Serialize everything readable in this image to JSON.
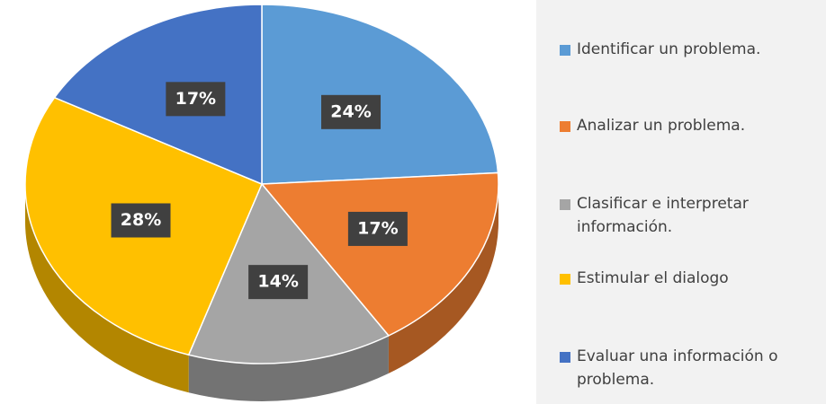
{
  "chart_data": {
    "type": "pie",
    "categories": [
      "Identificar un problema.",
      "Analizar un problema.",
      "Clasificar e interpretar información.",
      "Estimular el dialogo",
      "Evaluar una información o problema."
    ],
    "values": [
      24,
      17,
      14,
      28,
      17
    ],
    "value_labels": [
      "24%",
      "17%",
      "14%",
      "28%",
      "17%"
    ],
    "colors": [
      "#5b9bd5",
      "#ed7d31",
      "#a5a5a5",
      "#ffc000",
      "#4472c4"
    ],
    "legend": "right"
  }
}
